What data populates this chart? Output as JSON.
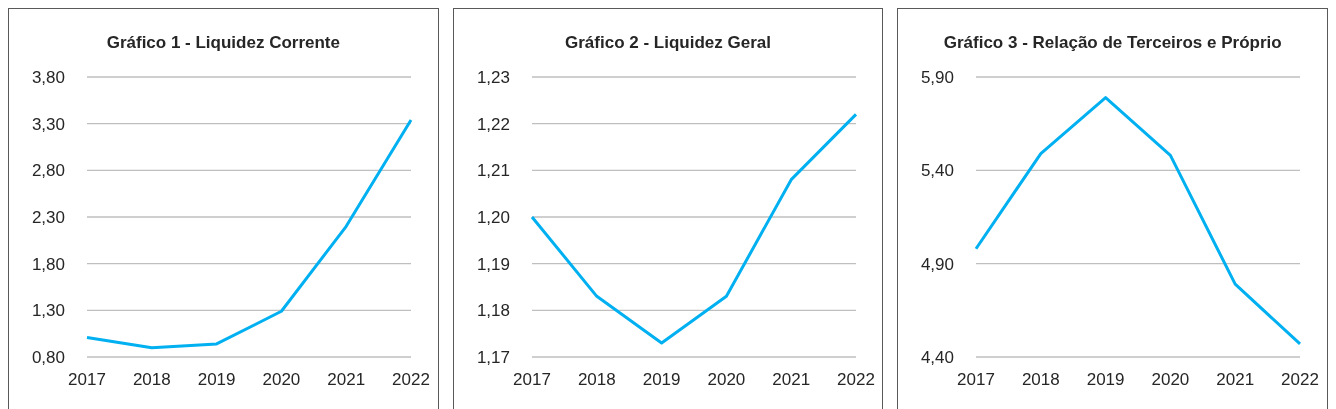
{
  "chart_data": [
    {
      "type": "line",
      "title": "Gráfico 1 - Liquidez Corrente",
      "categories": [
        "2017",
        "2018",
        "2019",
        "2020",
        "2021",
        "2022"
      ],
      "series": [
        {
          "color": "#00b0f0",
          "values": [
            1.01,
            0.9,
            0.94,
            1.29,
            2.2,
            3.34
          ]
        }
      ],
      "ylim": [
        0.8,
        3.8
      ],
      "yticks": [
        {
          "value": 0.8,
          "label": "0,80"
        },
        {
          "value": 1.3,
          "label": "1,30"
        },
        {
          "value": 1.8,
          "label": "1,80"
        },
        {
          "value": 2.3,
          "label": "2,30"
        },
        {
          "value": 2.8,
          "label": "2,80"
        },
        {
          "value": 3.3,
          "label": "3,30"
        },
        {
          "value": 3.8,
          "label": "3,80"
        }
      ],
      "grid": "y",
      "legend": false
    },
    {
      "type": "line",
      "title": "Gráfico 2 - Liquidez Geral",
      "categories": [
        "2017",
        "2018",
        "2019",
        "2020",
        "2021",
        "2022"
      ],
      "series": [
        {
          "color": "#00b0f0",
          "values": [
            1.2,
            1.183,
            1.173,
            1.183,
            1.208,
            1.222
          ]
        }
      ],
      "ylim": [
        1.17,
        1.23
      ],
      "yticks": [
        {
          "value": 1.17,
          "label": "1,17"
        },
        {
          "value": 1.18,
          "label": "1,18"
        },
        {
          "value": 1.19,
          "label": "1,19"
        },
        {
          "value": 1.2,
          "label": "1,20"
        },
        {
          "value": 1.21,
          "label": "1,21"
        },
        {
          "value": 1.22,
          "label": "1,22"
        },
        {
          "value": 1.23,
          "label": "1,23"
        }
      ],
      "grid": "y",
      "legend": false
    },
    {
      "type": "line",
      "title": "Gráfico 3 - Relação de Terceiros e Próprio",
      "categories": [
        "2017",
        "2018",
        "2019",
        "2020",
        "2021",
        "2022"
      ],
      "series": [
        {
          "color": "#00b0f0",
          "values": [
            4.98,
            5.49,
            5.79,
            5.48,
            4.79,
            4.47
          ]
        }
      ],
      "ylim": [
        4.4,
        5.9
      ],
      "yticks": [
        {
          "value": 4.4,
          "label": "4,40"
        },
        {
          "value": 4.9,
          "label": "4,90"
        },
        {
          "value": 5.4,
          "label": "5,40"
        },
        {
          "value": 5.9,
          "label": "5,90"
        }
      ],
      "grid": "y",
      "legend": false
    }
  ]
}
